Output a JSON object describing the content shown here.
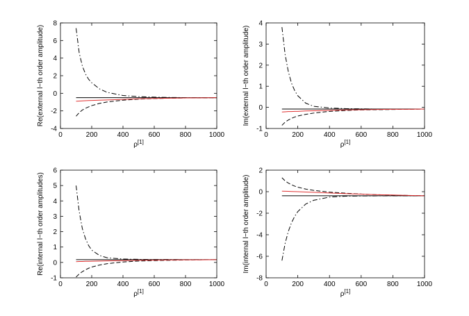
{
  "chart_data": [
    {
      "type": "line",
      "ylabel": "Re(external l−th order amplitude)",
      "xlabel": "ρ",
      "xlabel_sup": "[1]",
      "xlim": [
        0,
        1000
      ],
      "ylim": [
        -4,
        8
      ],
      "xticks": [
        0,
        200,
        400,
        600,
        800,
        1000
      ],
      "yticks": [
        -4,
        -2,
        0,
        2,
        4,
        6,
        8
      ],
      "grid": false,
      "x": [
        100,
        120,
        140,
        160,
        180,
        200,
        250,
        300,
        400,
        500,
        600,
        700,
        800,
        900,
        1000
      ],
      "series": [
        {
          "style": "dash-dot",
          "color": "#000000",
          "values": [
            7.4,
            4.6,
            3.1,
            2.2,
            1.6,
            1.2,
            0.5,
            0.1,
            -0.25,
            -0.38,
            -0.44,
            -0.47,
            -0.49,
            -0.5,
            -0.5
          ]
        },
        {
          "style": "dashed",
          "color": "#000000",
          "values": [
            -2.6,
            -2.2,
            -1.9,
            -1.7,
            -1.55,
            -1.4,
            -1.15,
            -0.98,
            -0.78,
            -0.66,
            -0.6,
            -0.56,
            -0.53,
            -0.52,
            -0.5
          ]
        },
        {
          "style": "solid",
          "color": "#000000",
          "values": [
            -0.5,
            -0.5,
            -0.5,
            -0.5,
            -0.5,
            -0.5,
            -0.5,
            -0.5,
            -0.5,
            -0.5,
            -0.5,
            -0.5,
            -0.5,
            -0.5,
            -0.5
          ]
        },
        {
          "style": "solid",
          "color": "#e03030",
          "values": [
            -0.9,
            -0.88,
            -0.86,
            -0.84,
            -0.82,
            -0.81,
            -0.78,
            -0.75,
            -0.69,
            -0.63,
            -0.59,
            -0.56,
            -0.53,
            -0.52,
            -0.5
          ]
        }
      ]
    },
    {
      "type": "line",
      "ylabel": "Im(external l−th order amplitude)",
      "xlabel": "ρ",
      "xlabel_sup": "[1]",
      "xlim": [
        0,
        1000
      ],
      "ylim": [
        -1,
        4
      ],
      "xticks": [
        0,
        200,
        400,
        600,
        800,
        1000
      ],
      "yticks": [
        -1,
        0,
        1,
        2,
        3,
        4
      ],
      "grid": false,
      "x": [
        100,
        120,
        140,
        160,
        180,
        200,
        250,
        300,
        400,
        500,
        600,
        700,
        800,
        900,
        1000
      ],
      "series": [
        {
          "style": "dash-dot",
          "color": "#000000",
          "values": [
            3.8,
            2.5,
            1.7,
            1.15,
            0.8,
            0.55,
            0.2,
            0.05,
            -0.03,
            -0.06,
            -0.07,
            -0.08,
            -0.08,
            -0.08,
            -0.08
          ]
        },
        {
          "style": "dashed",
          "color": "#000000",
          "values": [
            -0.85,
            -0.7,
            -0.6,
            -0.52,
            -0.46,
            -0.41,
            -0.33,
            -0.27,
            -0.19,
            -0.15,
            -0.12,
            -0.11,
            -0.1,
            -0.09,
            -0.08
          ]
        },
        {
          "style": "solid",
          "color": "#000000",
          "values": [
            -0.08,
            -0.08,
            -0.08,
            -0.08,
            -0.08,
            -0.08,
            -0.08,
            -0.08,
            -0.08,
            -0.08,
            -0.08,
            -0.08,
            -0.08,
            -0.08,
            -0.08
          ]
        },
        {
          "style": "solid",
          "color": "#e03030",
          "values": [
            -0.22,
            -0.21,
            -0.2,
            -0.2,
            -0.19,
            -0.19,
            -0.17,
            -0.16,
            -0.14,
            -0.12,
            -0.11,
            -0.1,
            -0.09,
            -0.09,
            -0.08
          ]
        }
      ]
    },
    {
      "type": "line",
      "ylabel": "Re(internal l−th order amplitudes)",
      "xlabel": "ρ",
      "xlabel_sup": "[1]",
      "xlim": [
        0,
        1000
      ],
      "ylim": [
        -1,
        6
      ],
      "xticks": [
        0,
        200,
        400,
        600,
        800,
        1000
      ],
      "yticks": [
        -1,
        0,
        1,
        2,
        3,
        4,
        5,
        6
      ],
      "grid": false,
      "x": [
        100,
        120,
        140,
        160,
        180,
        200,
        250,
        300,
        400,
        500,
        600,
        700,
        800,
        900,
        1000
      ],
      "series": [
        {
          "style": "dash-dot",
          "color": "#000000",
          "values": [
            5.0,
            3.3,
            2.2,
            1.55,
            1.1,
            0.8,
            0.45,
            0.3,
            0.22,
            0.2,
            0.19,
            0.19,
            0.18,
            0.18,
            0.18
          ]
        },
        {
          "style": "dashed",
          "color": "#000000",
          "values": [
            -0.95,
            -0.75,
            -0.6,
            -0.48,
            -0.38,
            -0.3,
            -0.17,
            -0.08,
            0.03,
            0.09,
            0.12,
            0.14,
            0.16,
            0.17,
            0.18
          ]
        },
        {
          "style": "solid",
          "color": "#000000",
          "values": [
            0.18,
            0.18,
            0.18,
            0.18,
            0.18,
            0.18,
            0.18,
            0.18,
            0.18,
            0.18,
            0.18,
            0.18,
            0.18,
            0.18,
            0.18
          ]
        },
        {
          "style": "solid",
          "color": "#e03030",
          "values": [
            0.05,
            0.06,
            0.06,
            0.07,
            0.07,
            0.08,
            0.09,
            0.1,
            0.12,
            0.14,
            0.15,
            0.16,
            0.17,
            0.17,
            0.18
          ]
        }
      ]
    },
    {
      "type": "line",
      "ylabel": "Im(internal l−th order amplitude)",
      "xlabel": "ρ",
      "xlabel_sup": "[1]",
      "xlim": [
        0,
        1000
      ],
      "ylim": [
        -8,
        2
      ],
      "xticks": [
        0,
        200,
        400,
        600,
        800,
        1000
      ],
      "yticks": [
        -8,
        -6,
        -4,
        -2,
        0,
        2
      ],
      "grid": false,
      "x": [
        100,
        120,
        140,
        160,
        180,
        200,
        250,
        300,
        400,
        500,
        600,
        700,
        800,
        900,
        1000
      ],
      "series": [
        {
          "style": "dash-dot",
          "color": "#000000",
          "values": [
            -6.4,
            -4.8,
            -3.7,
            -2.9,
            -2.3,
            -1.85,
            -1.15,
            -0.8,
            -0.5,
            -0.42,
            -0.4,
            -0.39,
            -0.39,
            -0.39,
            -0.38
          ]
        },
        {
          "style": "dashed",
          "color": "#000000",
          "values": [
            1.3,
            1.0,
            0.8,
            0.65,
            0.52,
            0.42,
            0.24,
            0.12,
            -0.04,
            -0.14,
            -0.22,
            -0.28,
            -0.32,
            -0.35,
            -0.38
          ]
        },
        {
          "style": "solid",
          "color": "#000000",
          "values": [
            -0.38,
            -0.38,
            -0.38,
            -0.38,
            -0.38,
            -0.38,
            -0.38,
            -0.38,
            -0.38,
            -0.38,
            -0.38,
            -0.38,
            -0.38,
            -0.38,
            -0.38
          ]
        },
        {
          "style": "solid",
          "color": "#e03030",
          "values": [
            0.05,
            0.04,
            0.03,
            0.02,
            0.01,
            0.0,
            -0.03,
            -0.06,
            -0.12,
            -0.18,
            -0.23,
            -0.28,
            -0.31,
            -0.35,
            -0.38
          ]
        }
      ]
    }
  ]
}
